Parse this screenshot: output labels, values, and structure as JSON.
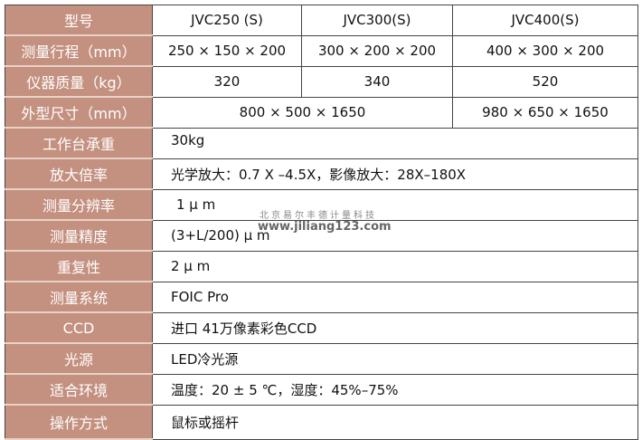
{
  "header": {
    "label": "型号",
    "models": [
      "JVC250 (S)",
      "JVC300(S)",
      "JVC400(S)"
    ]
  },
  "rows": [
    {
      "label": "测量行程（mm）",
      "values": [
        "250 × 150 × 200",
        "300 × 200 × 200",
        "400 × 300 × 200"
      ]
    },
    {
      "label": "仪器质量（kg）",
      "values": [
        "320",
        "340",
        "520"
      ]
    },
    {
      "label": "外型尺寸（mm）",
      "values": [
        "800 × 500 × 1650",
        "980 × 650 × 1650"
      ]
    },
    {
      "label": "工作台承重",
      "value": "30kg"
    },
    {
      "label": "放大倍率",
      "value": "光学放大：0.7 X –4.5X，影像放大：28X–180X"
    },
    {
      "label": "测量分辨率",
      "value": "1 μ m"
    },
    {
      "label": "测量精度",
      "value": "(3+L/200) μ m"
    },
    {
      "label": "重复性",
      "value": "2 μ m"
    },
    {
      "label": "测量系统",
      "value": "FOIC Pro"
    },
    {
      "label": "CCD",
      "value": "进口 41万像素彩色CCD"
    },
    {
      "label": "光源",
      "value": "LED冷光源"
    },
    {
      "label": "适合环境",
      "value": "温度：20 ± 5 ℃，湿度：45%–75%"
    },
    {
      "label": "操作方式",
      "value": "鼠标或摇杆"
    }
  ],
  "watermark": {
    "company": "北京易尔丰德计量科技",
    "url": "www.jiliang123.com"
  },
  "colors": {
    "label_bg": "#c4907f",
    "label_text": "#ffffff"
  }
}
